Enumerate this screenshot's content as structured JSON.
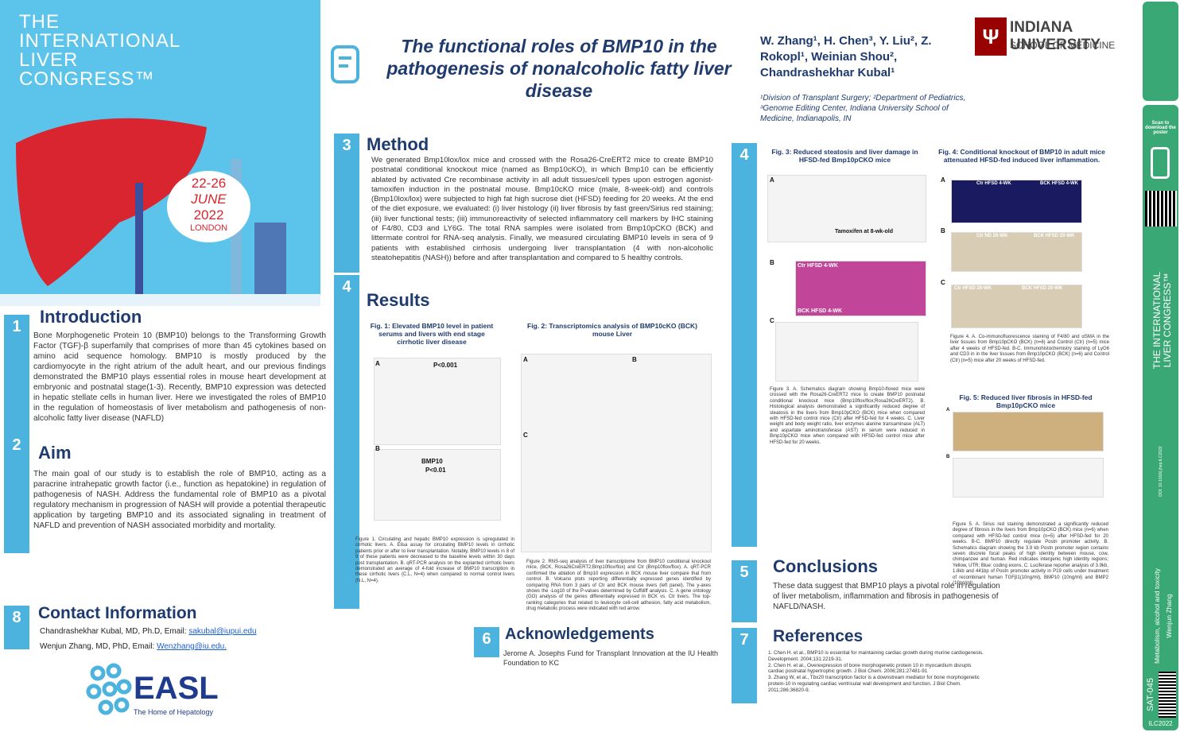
{
  "congress": {
    "lines": [
      "THE",
      "INTERNATIONAL",
      "LIVER",
      "CONGRESS™"
    ],
    "dates": "22-26",
    "month": "JUNE",
    "year": "2022",
    "city": "LONDON"
  },
  "header": {
    "title": "The functional roles of BMP10 in the pathogenesis of nonalcoholic fatty liver disease",
    "authors": "W. Zhang¹, H. Chen³, Y. Liu², Z. Rokopl¹, Weinian Shou², Chandrashekhar Kubal¹",
    "affiliations": "¹Division of Transplant Surgery; ²Department of Pediatrics, ³Genome Editing Center, Indiana University School of Medicine, Indianapolis, IN",
    "university": "INDIANA UNIVERSITY",
    "school": "SCHOOL OF MEDICINE"
  },
  "sections": {
    "introduction": {
      "number": "1",
      "heading": "Introduction",
      "text": "Bone Morphogenetic Protein 10 (BMP10) belongs to the Transforming Growth Factor (TGF)-β superfamily that comprises of more than 45 cytokines based on amino acid sequence homology. BMP10 is mostly produced by the cardiomyocyte in the right atrium of the adult heart, and our previous findings demonstrated the BMP10 plays essential roles in mouse heart development at embryonic and postnatal stage(1-3). Recently, BMP10 expression was detected in hepatic stellate cells in human liver. Here we investigated the roles of BMP10 in the regulation of homeostasis of liver metabolism and pathogenesis of non-alcoholic fatty liver disease (NAFLD)"
    },
    "aim": {
      "number": "2",
      "heading": "Aim",
      "text": "The main goal of our study is to establish the role of BMP10, acting as a paracrine intrahepatic growth factor (i.e., function as hepatokine) in regulation of pathogenesis of NASH. Address the fundamental role of BMP10 as a pivotal regulatory mechanism in progression of NASH will provide a potential therapeutic application by targeting BMP10 and its associated signaling in treatment of NAFLD and prevention of NASH associated morbidity and mortality."
    },
    "method": {
      "number": "3",
      "heading": "Method",
      "text": "We generated Bmp10lox/lox mice and crossed with the Rosa26-CreERT2 mice to create BMP10 postnatal conditional knockout mice (named as Bmp10cKO), in which Bmp10 can be efficiently ablated by activated Cre recombinase activity in all adult tissues/cell types upon estrogen agonist-tamoxifen induction in the postnatal mouse. Bmp10cKO mice (male, 8-week-old) and controls (Bmp10lox/lox) were subjected to high fat high sucrose diet (HFSD) feeding for 20 weeks. At the end of the diet exposure, we evaluated: (i) liver histology (ii) liver fibrosis by fast green/Sirius red staining; (iii) liver functional tests; (iii) immunoreactivity of selected inflammatory cell markers by IHC staining of F4/80, CD3 and LY6G. The total RNA samples were isolated from Bmp10pCKO (BCK) and littermate control for RNA-seq analysis. Finally, we measured circulating BMP10 levels in sera of 9 patients with established cirrhosis undergoing liver transplantation (4 with non-alcoholic steatohepatitis (NASH)) before and after transplantation and compared to 5 healthy controls."
    },
    "results": {
      "number": "4",
      "heading": "Results"
    },
    "results_right": {
      "number": "4"
    },
    "conclusions": {
      "number": "5",
      "heading": "Conclusions",
      "text": "These data suggest that BMP10 plays a pivotal role in regulation of liver metabolism, inflammation and fibrosis in pathogenesis of NAFLD/NASH."
    },
    "acknowledgements": {
      "number": "6",
      "heading": "Acknowledgements",
      "text": "Jerome A. Josephs Fund for Transplant Innovation at the IU Health Foundation to KC"
    },
    "references": {
      "number": "7",
      "heading": "References",
      "items": [
        "1. Chen H. et al., BMP10 is essential for maintaining cardiac growth during murine cardiogenesis. Development. 2004;131:2219-31.",
        "2. Chen H. et al., Overexpression of bone morphogenetic protein 10 in myocardium disrupts cardiac postnatal hypertrophic growth. J Biol Chem. 2006;281:27481-91",
        "3. Zhang W, et al., Tbx20 transcription factor is a downstream mediator for bone morphogenetic protein-10 in regulating cardiac ventricular wall development and function. J Biol Chem. 2011;286:36820-9."
      ]
    },
    "contact": {
      "number": "8",
      "heading": "Contact Information",
      "line1": "Chandrashekhar Kubal, MD, Ph.D, Email:",
      "email1": "sakubal@iupui.edu",
      "line2": "Wenjun Zhang, MD, PhD, Email:",
      "email2": "Wenzhang@iu.edu."
    }
  },
  "figures": {
    "fig1": {
      "title": "Fig. 1: Elevated BMP10 level in patient serums and livers with end stage cirrhotic liver disease",
      "labels": [
        "A",
        "P<0.001",
        "B",
        "BMP10",
        "P<0.01"
      ],
      "caption": "Figure 1. Circulating and hepatic BMP10 expression is upregulated in cirrhotic livers. A. Elisa assay for circulating BMP10 levels in cirrhotic patients prior or after to liver transplantation. Notably, BMP10 levels in 8 of 9 of these patients were decreased to the baseline levels within 30 days post transplantation. B. qRT-PCR analysis on the explanted cirrhotic livers demonstrated an average of 4-fold increase of BMP10 transcription in these cirrhotic livers (C.L, N=4) when compared to normal control livers (N.L, N=4)."
    },
    "fig2": {
      "title": "Fig. 2: Transcriptomics analysis of BMP10cKO (BCK) mouse Liver",
      "labels": [
        "A",
        "B",
        "C"
      ],
      "caption": "Figure 2. RNS-seq analysis of liver transcriptome from BMP10 conditional knockout mice, (BCK, Rosa26CreERT2;Bmp10flox/flox) and Ctr (Bmp10flox/flox). A. qRT-PCR confirmed the ablation of Bmp10 expression in BCK mouse liver compare that from control. B. Volcano plots reporting differentially expressed genes identified by comparing RNA from 3 pairs of Ctr and BCK mouse livers (left panel). The y-axes shows the -Log10 of the P-values determined by Cuffdiff analysis. C. A gene ontology (GO) analysis of the genes differentially expressed in BCK vs. Ctr livers. The top-ranking categories that related to leukocyte cell-cell adhesion, fatty acid metabolism, drug metabolic process were indicated with red arrow."
    },
    "fig3": {
      "title": "Fig. 3: Reduced steatosis and liver damage in HFSD-fed Bmp10pCKO mice",
      "labels": [
        "A",
        "B",
        "C",
        "Tamoxifen at 8-wk-old",
        "Ctr HFSD 4-WK",
        "BCK HFSD 4-WK"
      ],
      "caption": "Figure 3. A. Schematics diagram showing Bmp10-floxed mice were crossed with the Rosa26-CreERT2 mice to create BMP10 postnatal conditional knockout mice (Bmp10flox/flox;Rosa26CreERT2). B. Histological analysis demonstrated a significantly reduced degree of steatosis in the livers from Bmp10pCKO (BCK) mice when compared with HFSD-fed control mice (Ctr) after HFSD-fed for 4 weeks. C. Liver weight and body weight ratio, liver enzymes alanine transaminase (ALT) and aspartate aminotransferase (AST) in serum were reduced in Bmp10pCKO mice when compared with HFSD-fed control mice after HFSD-fed for 20 weeks."
    },
    "fig4": {
      "title": "Fig. 4: Conditional knockout of BMP10 in adult mice attenuated HFSD-fed induced liver inflammation.",
      "labels": [
        "A",
        "B",
        "C",
        "Ctr HFSD 4-WK",
        "BCK HFSD 4-WK",
        "Ctr ND 20-WK",
        "BCK HFSD 20-WK",
        "Ctr HFSD 20-WK",
        "BCK HFSD 20-WK"
      ],
      "caption": "Figure 4. A. Co-immunofluorescence staining of F4/80 and αSMA in the liver tissues from Bmp10pCKO (BCK) (n=6) and Control (Ctr) (n=5) mice after 4 weeks of HFSD-fed. B-C. Immunohistochemistry staining of LyG6 and CD3 in in the liver tissues from Bmp10pCKO (BCK) (n=6) and Control (Ctr) (n=5) mice after 20 weeks of HFSD-fed."
    },
    "fig5": {
      "title": "Fig. 5: Reduced liver fibrosis in HFSD-fed Bmp10pCKO mice",
      "labels": [
        "A",
        "B"
      ],
      "caption": "Figure 5. A. Sirius red staining demonstrated a significantly reduced degree of fibrosis in the livers from Bmp10pCKO (BCK) mice (n=6) when compared with HFSD-fed control mice (n=5) after HFSD-fed for 20 weeks. B-C. BMP10 directly regulate Postn promoter activity. B. Schematics diagram showing the 3.9 kb Postn promoter region contains seven discrete focal peaks of high identity between mouse, cow, chimpanzee and human. Red indicates intergenic high identity regions; Yellow, UTR; Blue: coding exons. C. Luciferase reporter analysis of 3.9kb, 1.8kb and 441bp of Postn promoter activity in P19 cells under treatment of recombinant human TGFβ1(10ng/ml), BMP10 (10ng/ml) and BMP2 (10ng/ml)."
    }
  },
  "sidebar": {
    "scan": "Scan to download the poster",
    "congress": "THE INTERNATIONAL LIVER CONGRESS™",
    "doi": "DOI: 10.1016/j.jhep.ILC2022",
    "topic": "Metabolism, alcohol and toxicity",
    "author": "Wenjun Zhang",
    "code": "SAT-045",
    "event": "ILC2022"
  },
  "easl": {
    "name": "EASL",
    "tagline": "The Home of Hepatology"
  }
}
